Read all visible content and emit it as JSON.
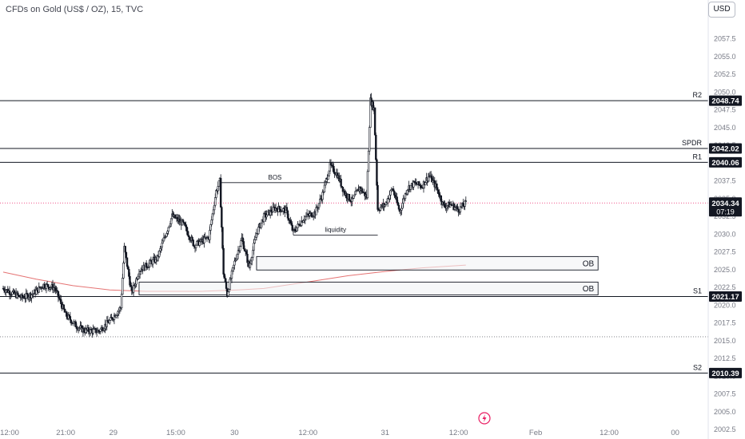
{
  "header": {
    "title": "CFDs on Gold (US$ / OZ), 15, TVC",
    "currency": "USD"
  },
  "colors": {
    "up_candle": "#131722",
    "down_candle": "#131722",
    "ma_line": "#e57373",
    "price_line": "#e91e63",
    "grid_line": "#131722"
  },
  "icons": {
    "bolt": "lightning-bolt-icon"
  },
  "chart_data": {
    "type": "candlestick",
    "symbol": "CFDs on Gold (US$ / OZ)",
    "interval": "15",
    "source": "TVC",
    "ylim": [
      2001.5,
      2060.5
    ],
    "y_ticks": [
      2002.5,
      2005.0,
      2007.5,
      2010.0,
      2012.5,
      2015.0,
      2017.5,
      2020.0,
      2022.5,
      2025.0,
      2027.5,
      2030.0,
      2032.5,
      2035.0,
      2037.5,
      2040.0,
      2042.5,
      2045.0,
      2047.5,
      2050.0,
      2052.5,
      2055.0,
      2057.5
    ],
    "x_tick_labels": [
      {
        "label": "12:00",
        "x": 0
      },
      {
        "label": "21:00",
        "x": 18
      },
      {
        "label": "29",
        "x": 31
      },
      {
        "label": "15:00",
        "x": 48
      },
      {
        "label": "30",
        "x": 64
      },
      {
        "label": "12:00",
        "x": 84
      },
      {
        "label": "31",
        "x": 105
      },
      {
        "label": "12:00",
        "x": 125
      },
      {
        "label": "Feb",
        "x": 146
      },
      {
        "label": "12:00",
        "x": 166
      },
      {
        "label": "00",
        "x": 184
      }
    ],
    "x_range": [
      1,
      193
    ],
    "horizontal_levels": [
      {
        "name": "R2",
        "value": 2048.74,
        "style": "solid"
      },
      {
        "name": "SPDR",
        "value": 2042.02,
        "style": "solid"
      },
      {
        "name": "R1",
        "value": 2040.06,
        "style": "solid"
      },
      {
        "name": "S1",
        "value": 2021.17,
        "style": "solid"
      },
      {
        "name": "S2",
        "value": 2010.39,
        "style": "solid"
      },
      {
        "name": "",
        "value": 2015.5,
        "style": "dotted"
      }
    ],
    "current_price": {
      "value": 2034.34,
      "countdown": "07:19"
    },
    "zones": [
      {
        "label": "OB",
        "x_start": 70,
        "x_end": 163,
        "top": 2026.8,
        "bottom": 2024.9
      },
      {
        "label": "OB",
        "x_start": 38,
        "x_end": 163,
        "top": 2023.2,
        "bottom": 2021.4
      }
    ],
    "annotations": [
      {
        "label": "BOS",
        "x_start": 60,
        "x_end": 90,
        "y": 2037.2
      },
      {
        "label": "liquidity",
        "x_start": 80,
        "x_end": 103,
        "y": 2029.8
      }
    ],
    "moving_average": [
      [
        1,
        2024.6
      ],
      [
        10,
        2023.6
      ],
      [
        20,
        2022.7
      ],
      [
        30,
        2022.1
      ],
      [
        40,
        2021.9
      ],
      [
        55,
        2021.9
      ],
      [
        65,
        2022.1
      ],
      [
        72,
        2022.3
      ],
      [
        85,
        2023.3
      ],
      [
        95,
        2024.1
      ],
      [
        105,
        2024.7
      ],
      [
        115,
        2025.2
      ],
      [
        127,
        2025.6
      ]
    ],
    "price_path": [
      [
        1,
        2022.3
      ],
      [
        6,
        2021.0
      ],
      [
        9,
        2021.5
      ],
      [
        12,
        2022.8
      ],
      [
        15,
        2022.4
      ],
      [
        18,
        2018.6
      ],
      [
        21,
        2017.0
      ],
      [
        23,
        2016.4
      ],
      [
        27,
        2016.3
      ],
      [
        30,
        2017.7
      ],
      [
        33,
        2019.6
      ],
      [
        34,
        2028.0
      ],
      [
        36,
        2021.6
      ],
      [
        38,
        2024.8
      ],
      [
        43,
        2026.6
      ],
      [
        47,
        2032.5
      ],
      [
        50,
        2031.4
      ],
      [
        53,
        2028.4
      ],
      [
        57,
        2029.5
      ],
      [
        59,
        2036.0
      ],
      [
        60,
        2037.4
      ],
      [
        61,
        2024.5
      ],
      [
        62,
        2021.5
      ],
      [
        64,
        2026.0
      ],
      [
        66,
        2029.3
      ],
      [
        68,
        2025.3
      ],
      [
        70,
        2030.1
      ],
      [
        72,
        2032.4
      ],
      [
        75,
        2033.6
      ],
      [
        78,
        2033.3
      ],
      [
        80,
        2030.2
      ],
      [
        83,
        2032.3
      ],
      [
        86,
        2033.0
      ],
      [
        88,
        2035.6
      ],
      [
        90,
        2039.6
      ],
      [
        92,
        2038.3
      ],
      [
        94,
        2035.7
      ],
      [
        96,
        2034.6
      ],
      [
        98,
        2036.5
      ],
      [
        100,
        2035.2
      ],
      [
        101,
        2048.8
      ],
      [
        102,
        2047.6
      ],
      [
        103,
        2033.5
      ],
      [
        105,
        2034.1
      ],
      [
        107,
        2036.4
      ],
      [
        109,
        2033.1
      ],
      [
        111,
        2036.4
      ],
      [
        113,
        2037.1
      ],
      [
        115,
        2036.7
      ],
      [
        117,
        2038.2
      ],
      [
        119,
        2036.5
      ],
      [
        121,
        2033.9
      ],
      [
        123,
        2034.1
      ],
      [
        125,
        2033.4
      ],
      [
        127,
        2034.3
      ]
    ]
  }
}
